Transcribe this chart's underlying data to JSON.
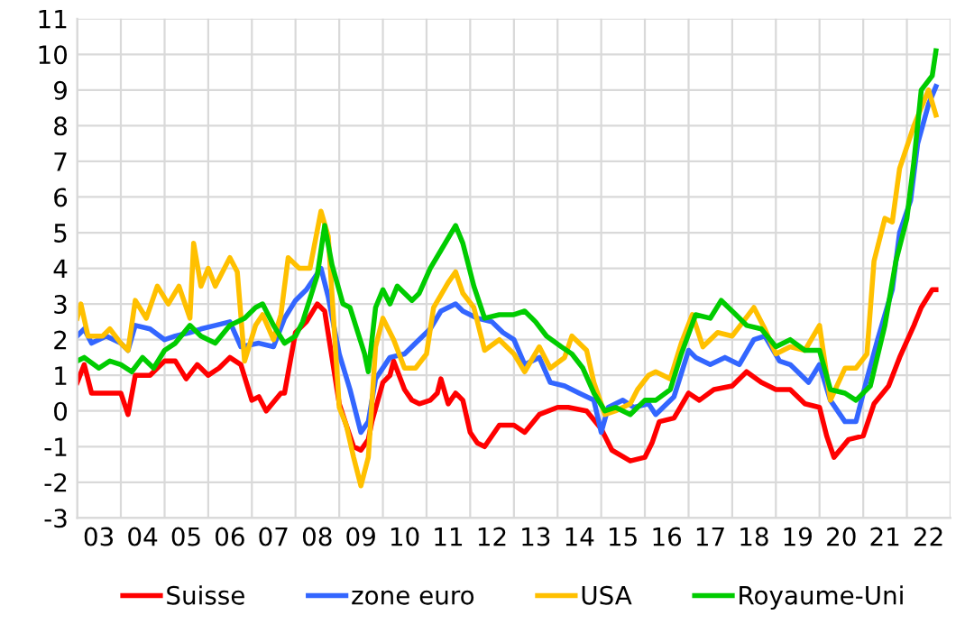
{
  "chart_data": {
    "type": "line",
    "xlim": [
      "2003-01-01",
      "2023-01-01"
    ],
    "xticks": [
      {
        "value": "2003-01-01",
        "label": null
      },
      {
        "value": "2003-07-01",
        "label": "03"
      },
      {
        "value": "2004-01-01",
        "label": null
      },
      {
        "value": "2004-07-01",
        "label": "04"
      },
      {
        "value": "2005-01-01",
        "label": null
      },
      {
        "value": "2005-07-01",
        "label": "05"
      },
      {
        "value": "2006-01-01",
        "label": null
      },
      {
        "value": "2006-07-01",
        "label": "06"
      },
      {
        "value": "2007-01-01",
        "label": null
      },
      {
        "value": "2007-07-01",
        "label": "07"
      },
      {
        "value": "2008-01-01",
        "label": null
      },
      {
        "value": "2008-07-01",
        "label": "08"
      },
      {
        "value": "2009-01-01",
        "label": null
      },
      {
        "value": "2009-07-01",
        "label": "09"
      },
      {
        "value": "2010-01-01",
        "label": null
      },
      {
        "value": "2010-07-01",
        "label": "10"
      },
      {
        "value": "2011-01-01",
        "label": null
      },
      {
        "value": "2011-07-01",
        "label": "11"
      },
      {
        "value": "2012-01-01",
        "label": null
      },
      {
        "value": "2012-07-01",
        "label": "12"
      },
      {
        "value": "2013-01-01",
        "label": null
      },
      {
        "value": "2013-07-01",
        "label": "13"
      },
      {
        "value": "2014-01-01",
        "label": null
      },
      {
        "value": "2014-07-01",
        "label": "14"
      },
      {
        "value": "2015-01-01",
        "label": null
      },
      {
        "value": "2015-07-01",
        "label": "15"
      },
      {
        "value": "2016-01-01",
        "label": null
      },
      {
        "value": "2016-07-01",
        "label": "16"
      },
      {
        "value": "2017-01-01",
        "label": null
      },
      {
        "value": "2017-07-01",
        "label": "17"
      },
      {
        "value": "2018-01-01",
        "label": null
      },
      {
        "value": "2018-07-01",
        "label": "18"
      },
      {
        "value": "2019-01-01",
        "label": null
      },
      {
        "value": "2019-07-01",
        "label": "19"
      },
      {
        "value": "2020-01-01",
        "label": null
      },
      {
        "value": "2020-07-01",
        "label": "20"
      },
      {
        "value": "2021-01-01",
        "label": null
      },
      {
        "value": "2021-07-01",
        "label": "21"
      },
      {
        "value": "2022-01-01",
        "label": null
      },
      {
        "value": "2022-07-01",
        "label": "22"
      },
      {
        "value": "2023-01-01",
        "label": null
      }
    ],
    "ylim": [
      -3,
      11
    ],
    "yticks": [
      -3,
      -2,
      -1,
      0,
      1,
      2,
      3,
      4,
      5,
      6,
      7,
      8,
      9,
      10,
      11
    ],
    "grid": true,
    "legend": "bottom",
    "marker": "none",
    "line_style": "solid",
    "series": [
      {
        "name": "Suisse",
        "color": "#ff0000",
        "x": [
          "2003-01",
          "2003-03",
          "2003-05",
          "2003-09",
          "2004-01",
          "2004-03",
          "2004-05",
          "2004-09",
          "2005-01",
          "2005-04",
          "2005-07",
          "2005-10",
          "2006-01",
          "2006-04",
          "2006-07",
          "2006-10",
          "2007-01",
          "2007-03",
          "2007-05",
          "2007-09",
          "2007-10",
          "2008-01",
          "2008-04",
          "2008-07",
          "2008-09",
          "2008-11",
          "2009-01",
          "2009-03",
          "2009-05",
          "2009-07",
          "2009-09",
          "2009-10",
          "2010-01",
          "2010-03",
          "2010-04",
          "2010-07",
          "2010-09",
          "2010-11",
          "2011-02",
          "2011-04",
          "2011-05",
          "2011-07",
          "2011-09",
          "2011-11",
          "2012-01",
          "2012-03",
          "2012-05",
          "2012-09",
          "2013-01",
          "2013-04",
          "2013-08",
          "2014-01",
          "2014-04",
          "2014-09",
          "2015-01",
          "2015-04",
          "2015-09",
          "2016-01",
          "2016-03",
          "2016-05",
          "2016-09",
          "2017-01",
          "2017-04",
          "2017-08",
          "2018-01",
          "2018-05",
          "2018-09",
          "2019-01",
          "2019-05",
          "2019-09",
          "2020-01",
          "2020-03",
          "2020-05",
          "2020-09",
          "2021-01",
          "2021-04",
          "2021-08",
          "2021-11",
          "2022-03",
          "2022-05",
          "2022-08",
          "2022-09"
        ],
        "values": [
          0.8,
          1.3,
          0.5,
          0.5,
          0.5,
          -0.1,
          1.0,
          1.0,
          1.4,
          1.4,
          0.9,
          1.3,
          1.0,
          1.2,
          1.5,
          1.3,
          0.3,
          0.4,
          0.0,
          0.5,
          0.5,
          2.2,
          2.5,
          3.0,
          2.8,
          1.5,
          0.2,
          -0.4,
          -1.0,
          -1.1,
          -0.8,
          -0.3,
          0.8,
          1.0,
          1.4,
          0.6,
          0.3,
          0.2,
          0.3,
          0.5,
          0.9,
          0.2,
          0.5,
          0.3,
          -0.6,
          -0.9,
          -1.0,
          -0.4,
          -0.4,
          -0.6,
          -0.1,
          0.1,
          0.1,
          0.0,
          -0.5,
          -1.1,
          -1.4,
          -1.3,
          -0.9,
          -0.3,
          -0.2,
          0.5,
          0.3,
          0.6,
          0.7,
          1.1,
          0.8,
          0.6,
          0.6,
          0.2,
          0.1,
          -0.7,
          -1.3,
          -0.8,
          -0.7,
          0.2,
          0.7,
          1.5,
          2.4,
          2.9,
          3.4,
          3.4
        ]
      },
      {
        "name": "zone euro",
        "color": "#3366ff",
        "x": [
          "2003-01",
          "2003-03",
          "2003-05",
          "2003-09",
          "2004-01",
          "2004-03",
          "2004-05",
          "2004-09",
          "2005-01",
          "2005-04",
          "2005-08",
          "2005-11",
          "2006-03",
          "2006-07",
          "2006-10",
          "2007-03",
          "2007-07",
          "2007-10",
          "2008-01",
          "2008-04",
          "2008-08",
          "2008-10",
          "2009-01",
          "2009-04",
          "2009-07",
          "2009-09",
          "2009-11",
          "2010-03",
          "2010-07",
          "2010-10",
          "2011-02",
          "2011-05",
          "2011-09",
          "2011-11",
          "2012-03",
          "2012-07",
          "2012-10",
          "2013-01",
          "2013-04",
          "2013-08",
          "2013-11",
          "2014-03",
          "2014-07",
          "2014-11",
          "2015-01",
          "2015-03",
          "2015-07",
          "2015-10",
          "2016-02",
          "2016-04",
          "2016-09",
          "2017-01",
          "2017-03",
          "2017-07",
          "2017-11",
          "2018-03",
          "2018-07",
          "2018-10",
          "2019-02",
          "2019-05",
          "2019-10",
          "2020-01",
          "2020-04",
          "2020-08",
          "2020-11",
          "2021-02",
          "2021-05",
          "2021-09",
          "2021-11",
          "2022-02",
          "2022-04",
          "2022-07",
          "2022-09"
        ],
        "values": [
          2.1,
          2.3,
          1.9,
          2.1,
          1.9,
          1.7,
          2.4,
          2.3,
          2.0,
          2.1,
          2.2,
          2.3,
          2.4,
          2.5,
          1.8,
          1.9,
          1.8,
          2.6,
          3.1,
          3.4,
          4.0,
          3.2,
          1.6,
          0.6,
          -0.6,
          -0.3,
          0.9,
          1.5,
          1.6,
          1.9,
          2.3,
          2.8,
          3.0,
          2.8,
          2.6,
          2.5,
          2.2,
          2.0,
          1.3,
          1.5,
          0.8,
          0.7,
          0.5,
          0.3,
          -0.6,
          0.1,
          0.3,
          0.1,
          0.2,
          -0.1,
          0.4,
          1.7,
          1.5,
          1.3,
          1.5,
          1.3,
          2.0,
          2.1,
          1.4,
          1.3,
          0.8,
          1.3,
          0.3,
          -0.3,
          -0.3,
          0.9,
          2.0,
          3.4,
          5.0,
          5.9,
          7.5,
          8.6,
          9.1
        ]
      },
      {
        "name": "USA",
        "color": "#ffc000",
        "x": [
          "2003-01",
          "2003-02",
          "2003-04",
          "2003-08",
          "2003-10",
          "2004-01",
          "2004-03",
          "2004-05",
          "2004-08",
          "2004-11",
          "2005-02",
          "2005-05",
          "2005-08",
          "2005-09",
          "2005-11",
          "2006-01",
          "2006-03",
          "2006-07",
          "2006-09",
          "2006-11",
          "2007-02",
          "2007-04",
          "2007-07",
          "2007-09",
          "2007-11",
          "2008-02",
          "2008-05",
          "2008-08",
          "2008-10",
          "2009-01",
          "2009-03",
          "2009-05",
          "2009-07",
          "2009-09",
          "2009-11",
          "2010-01",
          "2010-04",
          "2010-07",
          "2010-10",
          "2011-01",
          "2011-03",
          "2011-07",
          "2011-09",
          "2011-11",
          "2012-02",
          "2012-05",
          "2012-09",
          "2013-01",
          "2013-04",
          "2013-08",
          "2013-11",
          "2014-03",
          "2014-05",
          "2014-09",
          "2014-11",
          "2015-02",
          "2015-05",
          "2015-09",
          "2015-11",
          "2016-02",
          "2016-04",
          "2016-08",
          "2016-11",
          "2017-02",
          "2017-05",
          "2017-09",
          "2018-01",
          "2018-07",
          "2018-10",
          "2019-01",
          "2019-05",
          "2019-09",
          "2020-01",
          "2020-04",
          "2020-08",
          "2020-11",
          "2021-02",
          "2021-04",
          "2021-07",
          "2021-09",
          "2021-11",
          "2022-03",
          "2022-05",
          "2022-07",
          "2022-09"
        ],
        "values": [
          2.6,
          3.0,
          2.1,
          2.1,
          2.3,
          1.9,
          1.7,
          3.1,
          2.6,
          3.5,
          3.0,
          3.5,
          2.6,
          4.7,
          3.5,
          4.0,
          3.5,
          4.3,
          3.9,
          1.4,
          2.4,
          2.7,
          2.0,
          2.7,
          4.3,
          4.0,
          4.0,
          5.6,
          4.9,
          0.1,
          -0.4,
          -1.3,
          -2.1,
          -1.3,
          1.8,
          2.6,
          2.0,
          1.2,
          1.2,
          1.6,
          2.9,
          3.6,
          3.9,
          3.3,
          2.9,
          1.7,
          2.0,
          1.6,
          1.1,
          1.8,
          1.2,
          1.5,
          2.1,
          1.7,
          0.8,
          -0.1,
          0.0,
          0.2,
          0.6,
          1.0,
          1.1,
          0.9,
          1.9,
          2.7,
          1.8,
          2.2,
          2.1,
          2.9,
          2.3,
          1.6,
          1.8,
          1.7,
          2.4,
          0.3,
          1.2,
          1.2,
          1.6,
          4.2,
          5.4,
          5.3,
          6.8,
          8.0,
          8.5,
          9.0,
          8.3
        ]
      },
      {
        "name": "Royaume-Uni",
        "color": "#00cc00",
        "x": [
          "2003-01",
          "2003-03",
          "2003-07",
          "2003-10",
          "2004-01",
          "2004-04",
          "2004-07",
          "2004-10",
          "2005-01",
          "2005-04",
          "2005-08",
          "2005-11",
          "2006-03",
          "2006-07",
          "2006-11",
          "2007-02",
          "2007-04",
          "2007-07",
          "2007-10",
          "2008-01",
          "2008-03",
          "2008-07",
          "2008-09",
          "2008-11",
          "2009-02",
          "2009-04",
          "2009-08",
          "2009-09",
          "2009-11",
          "2010-01",
          "2010-03",
          "2010-05",
          "2010-09",
          "2010-11",
          "2011-02",
          "2011-05",
          "2011-09",
          "2011-11",
          "2012-02",
          "2012-05",
          "2012-09",
          "2013-01",
          "2013-04",
          "2013-07",
          "2013-10",
          "2014-02",
          "2014-05",
          "2014-08",
          "2014-11",
          "2015-02",
          "2015-05",
          "2015-09",
          "2016-01",
          "2016-04",
          "2016-08",
          "2016-11",
          "2017-03",
          "2017-07",
          "2017-10",
          "2018-02",
          "2018-05",
          "2018-09",
          "2019-01",
          "2019-05",
          "2019-09",
          "2020-01",
          "2020-04",
          "2020-08",
          "2020-11",
          "2021-03",
          "2021-07",
          "2021-10",
          "2022-01",
          "2022-03",
          "2022-05",
          "2022-08",
          "2022-09"
        ],
        "values": [
          1.4,
          1.5,
          1.2,
          1.4,
          1.3,
          1.1,
          1.5,
          1.2,
          1.7,
          1.9,
          2.4,
          2.1,
          1.9,
          2.4,
          2.6,
          2.9,
          3.0,
          2.4,
          1.9,
          2.1,
          2.5,
          3.8,
          5.2,
          4.1,
          3.0,
          2.9,
          1.6,
          1.1,
          2.9,
          3.4,
          3.0,
          3.5,
          3.1,
          3.3,
          4.0,
          4.5,
          5.2,
          4.7,
          3.5,
          2.6,
          2.7,
          2.7,
          2.8,
          2.5,
          2.1,
          1.8,
          1.6,
          1.2,
          0.5,
          0.0,
          0.1,
          -0.1,
          0.3,
          0.3,
          0.6,
          1.6,
          2.7,
          2.6,
          3.1,
          2.7,
          2.4,
          2.3,
          1.8,
          2.0,
          1.7,
          1.7,
          0.6,
          0.5,
          0.3,
          0.7,
          2.4,
          4.2,
          5.4,
          7.0,
          9.0,
          9.4,
          10.1
        ]
      }
    ]
  }
}
